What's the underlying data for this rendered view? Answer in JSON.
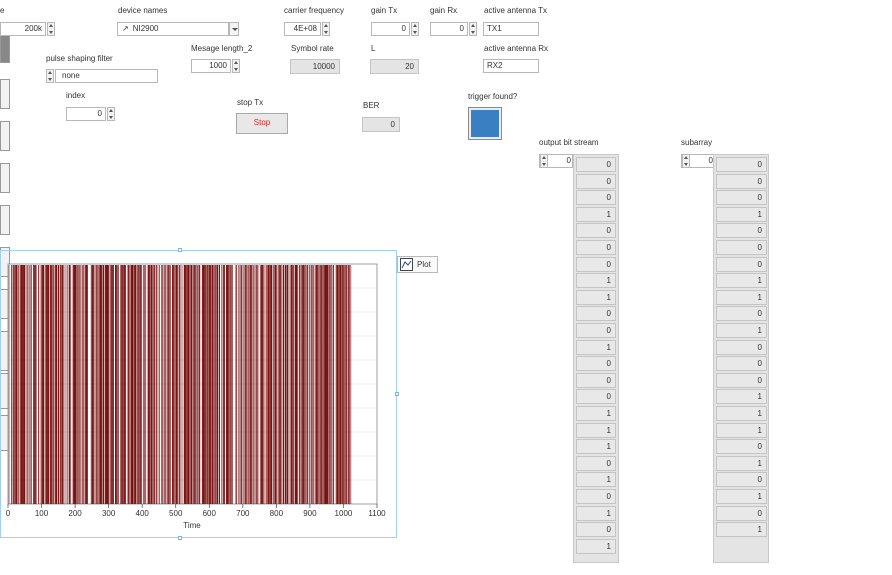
{
  "controls": {
    "iq_rate": {
      "label_fragment": "e",
      "value": "200k"
    },
    "device_names": {
      "label": "device names",
      "value": "NI2900"
    },
    "carrier_frequency": {
      "label": "carrier frequency",
      "value": "4E+08"
    },
    "gain_tx": {
      "label": "gain Tx",
      "value": "0"
    },
    "gain_rx": {
      "label": "gain Rx",
      "value": "0"
    },
    "active_antenna_tx": {
      "label": "active antenna Tx",
      "value": "TX1"
    },
    "active_antenna_rx": {
      "label": "active antenna Rx",
      "value": "RX2"
    },
    "pulse_shaping_filter": {
      "label": "pulse shaping filter",
      "value": "none"
    },
    "message_length": {
      "label": "Mesage length_2",
      "value": "1000"
    },
    "symbol_rate": {
      "label": "Symbol rate",
      "value": "10000"
    },
    "L": {
      "label": "L",
      "value": "20"
    },
    "index": {
      "label": "index",
      "value": "0"
    },
    "stop_tx": {
      "label": "stop Tx",
      "button_text": "Stop"
    },
    "ber": {
      "label": "BER",
      "value": "0"
    },
    "trigger_found": {
      "label": "trigger found?",
      "led_color": "#3a7fc1",
      "state": "on"
    }
  },
  "chart_data": {
    "type": "bar",
    "title": "",
    "xlabel": "Time",
    "ylabel": "",
    "xlim": [
      0,
      1100
    ],
    "ylim": [
      0,
      1
    ],
    "x_ticks": [
      "0",
      "100",
      "200",
      "300",
      "400",
      "500",
      "600",
      "700",
      "800",
      "900",
      "1000",
      "1100"
    ],
    "series": [
      {
        "name": "Plot",
        "color": "#7a1414",
        "length": 1024,
        "values": "binary bit stream (0/1)"
      }
    ],
    "legend": {
      "label": "Plot",
      "placement": "right"
    },
    "grid": true
  },
  "output_bit_stream": {
    "label": "output bit stream",
    "index": "0",
    "values": [
      "0",
      "0",
      "0",
      "1",
      "0",
      "0",
      "0",
      "1",
      "1",
      "0",
      "0",
      "1",
      "0",
      "0",
      "0",
      "1",
      "1",
      "1",
      "0",
      "1",
      "0",
      "1",
      "0",
      "1"
    ]
  },
  "subarray": {
    "label": "subarray",
    "index": "0",
    "values": [
      "0",
      "0",
      "0",
      "1",
      "0",
      "0",
      "0",
      "1",
      "1",
      "0",
      "1",
      "0",
      "0",
      "0",
      "1",
      "1",
      "1",
      "0",
      "1",
      "0",
      "1",
      "0",
      "1"
    ]
  },
  "colors": {
    "plot_bar": "#7a1414",
    "selection": "#7ab4e8",
    "stop_text": "#e02020",
    "led": "#3a7fc1"
  }
}
